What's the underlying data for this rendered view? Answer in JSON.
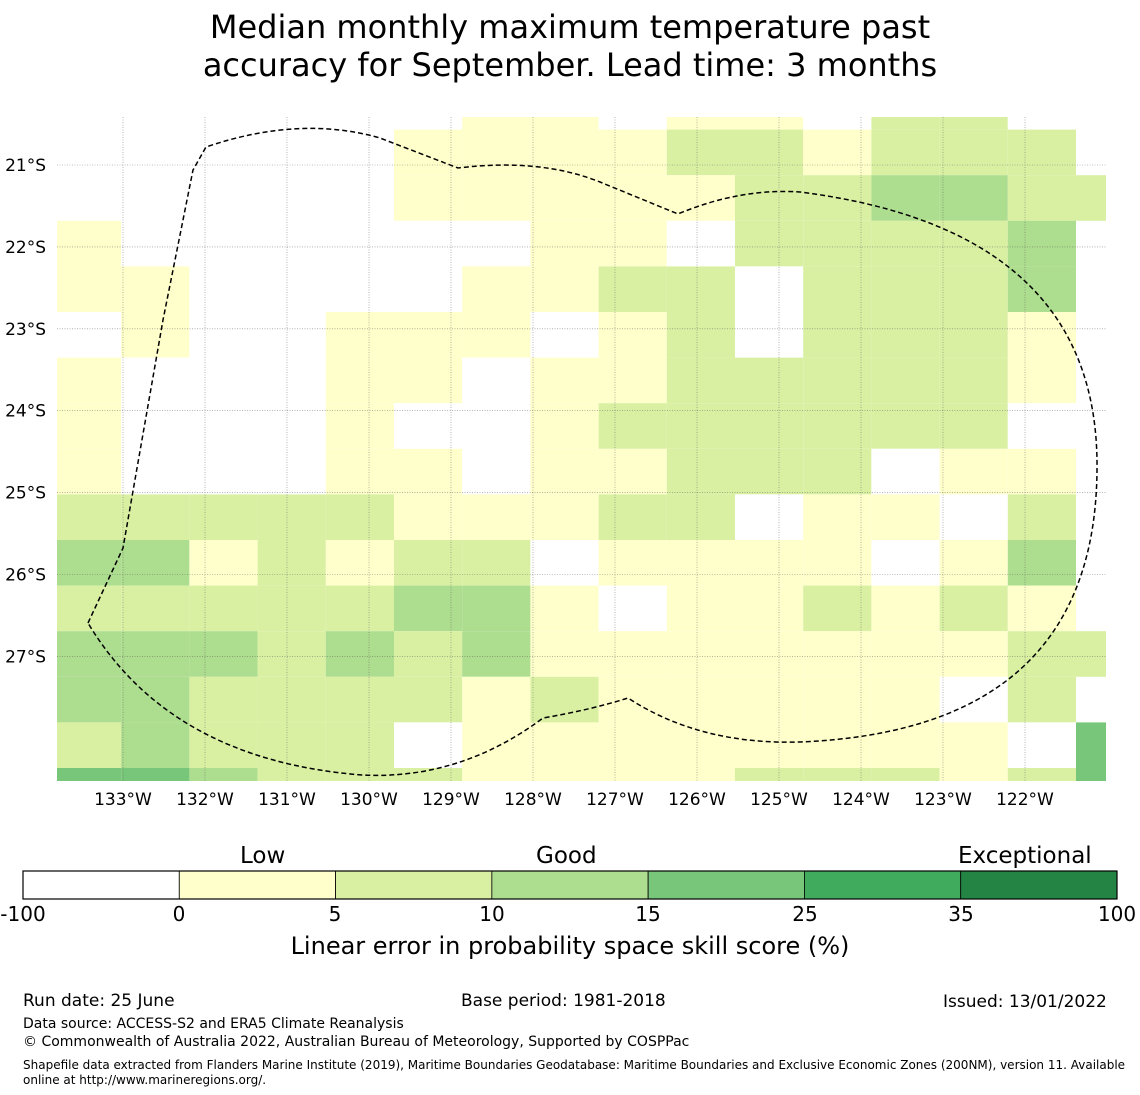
{
  "title_line1": "Median monthly maximum temperature past",
  "title_line2": "accuracy for September. Lead time: 3 months",
  "map": {
    "lon_labels": [
      "133°W",
      "132°W",
      "131°W",
      "130°W",
      "129°W",
      "128°W",
      "127°W",
      "126°W",
      "125°W",
      "124°W",
      "123°W",
      "122°W"
    ],
    "lat_labels": [
      "21°S",
      "22°S",
      "23°S",
      "24°S",
      "25°S",
      "26°S",
      "27°S"
    ],
    "lon_values": [
      -133,
      -132,
      -131,
      -130,
      -129,
      -128,
      -127,
      -126,
      -125,
      -124,
      -123,
      -122
    ],
    "lat_values": [
      -21,
      -22,
      -23,
      -24,
      -25,
      -26,
      -27
    ],
    "skill_classes": [
      "-100 to 0",
      "0 to 5",
      "5 to 10",
      "10 to 15",
      "15 to 25",
      "25 to 35",
      "35 to 100"
    ],
    "grid_rows": [
      "______11_11_22_",
      "_____1111221222",
      "_____11111223322",
      "1______11_22223",
      "11____1122_2223",
      "_1__111_12_2221",
      "1___11_11222221",
      "1___1__1222222_",
      "1___11_11222_11",
      "2222211122_11_2",
      "3312122_1111_13",
      "22222331_112121",
      "3332323111111122",
      "3322221211111_2",
      "23222_11111111_4",
      "4432221111222124"
    ],
    "colors": [
      "#ffffff",
      "#ffffcc",
      "#d9f0a3",
      "#addd8e",
      "#78c679",
      "#41ab5d",
      "#238443"
    ]
  },
  "colorbar": {
    "category_labels": [
      "Low",
      "Good",
      "Exceptional"
    ],
    "ticks": [
      "-100",
      "0",
      "5",
      "10",
      "15",
      "25",
      "35",
      "100"
    ],
    "title": "Linear error in probability space skill score (%)"
  },
  "footer": {
    "run_date": "Run date: 25 June",
    "base_period": "Base period: 1981-2018",
    "issued": "Issued: 13/01/2022",
    "data_source": "Data source: ACCESS-S2 and ERA5 Climate Reanalysis",
    "copyright": "© Commonwealth of Australia 2022, Australian Bureau of Meteorology, Supported by COSPPac",
    "shapefile": "Shapefile data extracted from Flanders Marine Institute (2019), Maritime Boundaries Geodatabase: Maritime Boundaries and Exclusive Economic Zones (200NM), version 11. Available online at http://www.marineregions.org/."
  }
}
